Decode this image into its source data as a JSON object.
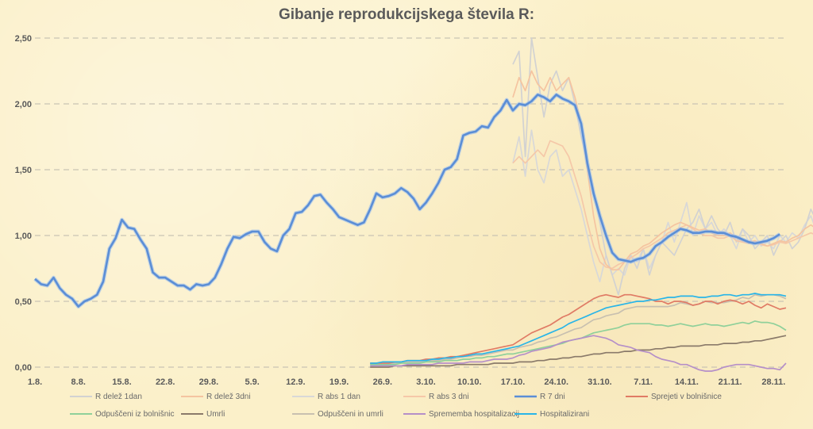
{
  "chart_data": {
    "type": "line",
    "title": "Gibanje reprodukcijskega števila R:",
    "xlabel": "",
    "ylabel": "",
    "ylim": [
      0,
      2.5
    ],
    "grid": "horizontal dashed",
    "legend_position": "bottom",
    "y_ticks": [
      "0,00",
      "0,50",
      "1,00",
      "1,50",
      "2,00",
      "2,50"
    ],
    "x_ticks": [
      "1.8.",
      "8.8.",
      "15.8.",
      "22.8.",
      "29.8.",
      "5.9.",
      "12.9.",
      "19.9.",
      "26.9.",
      "3.10.",
      "10.10.",
      "17.10.",
      "24.10.",
      "31.10.",
      "7.11.",
      "14.11.",
      "21.11.",
      "28.11."
    ],
    "series": [
      {
        "name": "R delež 1dan",
        "color": "#d2d2d2",
        "x_start": 77,
        "values": [
          2.3,
          2.4,
          1.6,
          2.5,
          2.2,
          1.9,
          2.15,
          2.25,
          2.1,
          2.2,
          2.0,
          1.75,
          1.55,
          1.35,
          1.1,
          0.85,
          0.7,
          0.55,
          0.75,
          0.85,
          0.75,
          0.9,
          0.7,
          0.85,
          0.95,
          0.9,
          0.85,
          0.95,
          1.05,
          1.1,
          1.2,
          1.05,
          1.15,
          1.05,
          1.0,
          1.1,
          0.95,
          1.05,
          1.0,
          0.9,
          0.95,
          1.0,
          0.85,
          0.95,
          1.0,
          0.9,
          0.95,
          1.05,
          1.2,
          1.1
        ]
      },
      {
        "name": "R delež 3dni",
        "color": "#f5c4a0",
        "x_start": 77,
        "values": [
          2.05,
          2.2,
          2.1,
          2.25,
          2.15,
          2.1,
          2.2,
          2.1,
          2.15,
          2.2,
          2.05,
          1.85,
          1.5,
          1.15,
          0.9,
          0.78,
          0.74,
          0.74,
          0.8,
          0.86,
          0.88,
          0.92,
          0.94,
          0.98,
          1.02,
          1.05,
          1.08,
          1.1,
          1.08,
          1.06,
          1.04,
          1.05,
          1.02,
          1.0,
          1.0,
          1.02,
          0.98,
          0.96,
          0.95,
          0.96,
          0.94,
          0.92,
          0.94,
          0.96,
          0.95,
          0.98,
          1.0,
          1.05,
          1.08,
          1.05
        ]
      },
      {
        "name": "R abs 1 dan",
        "color": "#d8d8d8",
        "x_start": 77,
        "values": [
          1.55,
          1.75,
          1.45,
          1.8,
          1.5,
          1.4,
          1.6,
          1.65,
          1.45,
          1.5,
          1.35,
          1.2,
          1.0,
          0.8,
          0.65,
          0.85,
          0.7,
          0.75,
          0.7,
          0.85,
          0.8,
          0.9,
          0.75,
          0.85,
          0.95,
          1.1,
          0.95,
          1.1,
          1.25,
          1.0,
          1.15,
          1.05,
          1.1,
          1.0,
          1.05,
          1.0,
          0.9,
          1.05,
          0.95,
          1.0,
          0.92,
          0.95,
          0.9,
          1.0,
          0.95,
          1.02,
          0.98,
          1.08,
          1.15,
          1.02
        ]
      },
      {
        "name": "R abs 3 dni",
        "color": "#f5c8a8",
        "x_start": 77,
        "values": [
          1.55,
          1.6,
          1.55,
          1.6,
          1.65,
          1.6,
          1.72,
          1.7,
          1.68,
          1.6,
          1.45,
          1.3,
          1.1,
          0.92,
          0.8,
          0.76,
          0.75,
          0.78,
          0.8,
          0.83,
          0.86,
          0.9,
          0.92,
          0.95,
          0.98,
          1.02,
          1.04,
          1.06,
          1.08,
          1.05,
          1.02,
          1.0,
          1.0,
          0.98,
          0.98,
          1.0,
          0.96,
          0.95,
          0.94,
          0.95,
          0.93,
          0.92,
          0.93,
          0.95,
          0.94,
          0.96,
          0.98,
          1.0,
          1.02,
          1.0
        ]
      },
      {
        "name": "R 7 dni",
        "color": "#5b8ed6",
        "x_start": 0,
        "values": [
          0.67,
          0.63,
          0.62,
          0.68,
          0.6,
          0.55,
          0.52,
          0.46,
          0.5,
          0.52,
          0.55,
          0.65,
          0.9,
          0.98,
          1.12,
          1.06,
          1.05,
          0.97,
          0.9,
          0.72,
          0.68,
          0.68,
          0.65,
          0.62,
          0.62,
          0.59,
          0.63,
          0.62,
          0.63,
          0.68,
          0.78,
          0.9,
          0.99,
          0.98,
          1.01,
          1.03,
          1.03,
          0.95,
          0.9,
          0.88,
          1.0,
          1.05,
          1.17,
          1.18,
          1.23,
          1.3,
          1.31,
          1.25,
          1.2,
          1.14,
          1.12,
          1.1,
          1.08,
          1.1,
          1.2,
          1.32,
          1.29,
          1.3,
          1.32,
          1.36,
          1.33,
          1.28,
          1.2,
          1.25,
          1.32,
          1.4,
          1.5,
          1.52,
          1.58,
          1.76,
          1.78,
          1.79,
          1.83,
          1.82,
          1.9,
          1.95,
          2.03,
          1.95,
          2.0,
          1.99,
          2.02,
          2.07,
          2.05,
          2.02,
          2.07,
          2.04,
          2.02,
          1.99,
          1.85,
          1.55,
          1.32,
          1.15,
          1.0,
          0.87,
          0.82,
          0.81,
          0.8,
          0.82,
          0.83,
          0.86,
          0.92,
          0.95,
          0.99,
          1.02,
          1.05,
          1.04,
          1.02,
          1.02,
          1.03,
          1.03,
          1.02,
          1.02,
          1.0,
          0.99,
          0.97,
          0.95,
          0.94,
          0.95,
          0.96,
          0.98,
          1.01
        ]
      },
      {
        "name": "Sprejeti v bolnišnice",
        "color": "#e07b65",
        "x_start": 54,
        "values": [
          0.03,
          0.03,
          0.03,
          0.03,
          0.04,
          0.04,
          0.05,
          0.05,
          0.05,
          0.06,
          0.06,
          0.07,
          0.07,
          0.08,
          0.08,
          0.09,
          0.1,
          0.11,
          0.12,
          0.13,
          0.14,
          0.15,
          0.16,
          0.17,
          0.2,
          0.23,
          0.26,
          0.28,
          0.3,
          0.32,
          0.35,
          0.38,
          0.4,
          0.43,
          0.46,
          0.49,
          0.52,
          0.54,
          0.55,
          0.54,
          0.53,
          0.55,
          0.55,
          0.54,
          0.53,
          0.52,
          0.5,
          0.5,
          0.48,
          0.5,
          0.5,
          0.49,
          0.47,
          0.48,
          0.5,
          0.5,
          0.48,
          0.5,
          0.51,
          0.5,
          0.48,
          0.5,
          0.47,
          0.45,
          0.48,
          0.46,
          0.44,
          0.45
        ]
      },
      {
        "name": "Odpuščeni iz bolnišnic",
        "color": "#8fd09a",
        "x_start": 54,
        "values": [
          0.02,
          0.02,
          0.02,
          0.02,
          0.02,
          0.03,
          0.03,
          0.03,
          0.03,
          0.04,
          0.04,
          0.04,
          0.05,
          0.05,
          0.05,
          0.06,
          0.06,
          0.07,
          0.07,
          0.08,
          0.08,
          0.09,
          0.1,
          0.1,
          0.11,
          0.12,
          0.13,
          0.14,
          0.15,
          0.16,
          0.17,
          0.18,
          0.2,
          0.21,
          0.22,
          0.24,
          0.26,
          0.27,
          0.28,
          0.29,
          0.3,
          0.32,
          0.33,
          0.33,
          0.33,
          0.33,
          0.32,
          0.32,
          0.31,
          0.32,
          0.33,
          0.32,
          0.31,
          0.32,
          0.33,
          0.32,
          0.32,
          0.31,
          0.32,
          0.33,
          0.34,
          0.33,
          0.35,
          0.34,
          0.34,
          0.33,
          0.31,
          0.28
        ]
      },
      {
        "name": "Umrli",
        "color": "#8a7a6a",
        "x_start": 54,
        "values": [
          0.0,
          0.0,
          0.0,
          0.0,
          0.01,
          0.01,
          0.01,
          0.01,
          0.01,
          0.01,
          0.01,
          0.01,
          0.01,
          0.01,
          0.02,
          0.02,
          0.02,
          0.02,
          0.02,
          0.02,
          0.03,
          0.03,
          0.03,
          0.03,
          0.04,
          0.04,
          0.04,
          0.05,
          0.05,
          0.06,
          0.06,
          0.07,
          0.07,
          0.08,
          0.08,
          0.09,
          0.1,
          0.1,
          0.11,
          0.11,
          0.11,
          0.12,
          0.12,
          0.13,
          0.13,
          0.13,
          0.14,
          0.14,
          0.15,
          0.15,
          0.16,
          0.16,
          0.16,
          0.16,
          0.17,
          0.17,
          0.17,
          0.18,
          0.18,
          0.18,
          0.19,
          0.19,
          0.2,
          0.2,
          0.21,
          0.22,
          0.23,
          0.24
        ]
      },
      {
        "name": "Odpuščeni in umrli",
        "color": "#c8c0b0",
        "x_start": 54,
        "values": [
          0.02,
          0.02,
          0.02,
          0.02,
          0.03,
          0.04,
          0.04,
          0.04,
          0.04,
          0.05,
          0.05,
          0.05,
          0.06,
          0.06,
          0.07,
          0.08,
          0.08,
          0.09,
          0.09,
          0.1,
          0.11,
          0.12,
          0.13,
          0.13,
          0.15,
          0.16,
          0.17,
          0.19,
          0.2,
          0.22,
          0.23,
          0.25,
          0.27,
          0.29,
          0.3,
          0.33,
          0.36,
          0.37,
          0.39,
          0.4,
          0.41,
          0.44,
          0.45,
          0.46,
          0.46,
          0.46,
          0.46,
          0.46,
          0.46,
          0.47,
          0.49,
          0.48,
          0.47,
          0.48,
          0.5,
          0.49,
          0.49,
          0.49,
          0.5,
          0.51,
          0.53,
          0.52,
          0.55,
          0.54,
          0.55,
          0.55,
          0.54,
          0.52
        ]
      },
      {
        "name": "Sprememba hospitalizacij",
        "color": "#b58fc8",
        "x_start": 54,
        "values": [
          0.01,
          0.01,
          0.01,
          0.01,
          0.01,
          0.01,
          0.02,
          0.02,
          0.02,
          0.02,
          0.02,
          0.03,
          0.03,
          0.03,
          0.03,
          0.03,
          0.04,
          0.04,
          0.04,
          0.05,
          0.06,
          0.06,
          0.06,
          0.07,
          0.09,
          0.1,
          0.12,
          0.13,
          0.14,
          0.15,
          0.17,
          0.19,
          0.2,
          0.21,
          0.22,
          0.23,
          0.24,
          0.23,
          0.22,
          0.2,
          0.17,
          0.16,
          0.15,
          0.13,
          0.12,
          0.11,
          0.08,
          0.06,
          0.05,
          0.04,
          0.02,
          0.02,
          0.0,
          -0.02,
          -0.03,
          -0.03,
          -0.02,
          0.0,
          0.01,
          0.02,
          0.02,
          0.02,
          0.01,
          0.0,
          -0.01,
          -0.01,
          -0.02,
          0.03
        ]
      },
      {
        "name": "Hospitalizirani",
        "color": "#29b5e8",
        "x_start": 54,
        "values": [
          0.03,
          0.03,
          0.04,
          0.04,
          0.04,
          0.04,
          0.05,
          0.05,
          0.05,
          0.05,
          0.06,
          0.06,
          0.07,
          0.07,
          0.08,
          0.08,
          0.09,
          0.1,
          0.1,
          0.11,
          0.12,
          0.13,
          0.14,
          0.15,
          0.16,
          0.18,
          0.2,
          0.22,
          0.24,
          0.26,
          0.28,
          0.3,
          0.33,
          0.35,
          0.37,
          0.39,
          0.41,
          0.43,
          0.45,
          0.46,
          0.47,
          0.48,
          0.49,
          0.5,
          0.5,
          0.51,
          0.51,
          0.52,
          0.53,
          0.53,
          0.54,
          0.54,
          0.54,
          0.53,
          0.53,
          0.54,
          0.54,
          0.55,
          0.55,
          0.54,
          0.55,
          0.55,
          0.56,
          0.55,
          0.55,
          0.55,
          0.55,
          0.54
        ]
      }
    ]
  }
}
